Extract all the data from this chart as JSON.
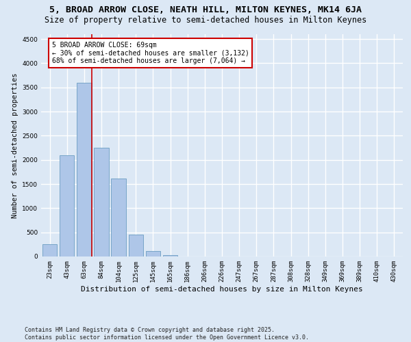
{
  "title": "5, BROAD ARROW CLOSE, NEATH HILL, MILTON KEYNES, MK14 6JA",
  "subtitle": "Size of property relative to semi-detached houses in Milton Keynes",
  "xlabel": "Distribution of semi-detached houses by size in Milton Keynes",
  "ylabel": "Number of semi-detached properties",
  "categories": [
    "23sqm",
    "43sqm",
    "63sqm",
    "84sqm",
    "104sqm",
    "125sqm",
    "145sqm",
    "165sqm",
    "186sqm",
    "206sqm",
    "226sqm",
    "247sqm",
    "267sqm",
    "287sqm",
    "308sqm",
    "328sqm",
    "349sqm",
    "369sqm",
    "389sqm",
    "410sqm",
    "430sqm"
  ],
  "values": [
    250,
    2100,
    3600,
    2250,
    1620,
    450,
    120,
    30,
    5,
    0,
    0,
    0,
    0,
    0,
    0,
    0,
    0,
    0,
    0,
    0,
    0
  ],
  "bar_color": "#aec6e8",
  "bar_edge_color": "#6b9dc2",
  "background_color": "#dce8f5",
  "grid_color": "#ffffff",
  "annotation_box_color": "#ffffff",
  "annotation_box_edge": "#cc0000",
  "annotation_line_color": "#cc0000",
  "property_label": "5 BROAD ARROW CLOSE: 69sqm",
  "pct_smaller": 30,
  "pct_larger": 68,
  "count_smaller": 3132,
  "count_larger": 7064,
  "marker_bin_index": 2,
  "ylim": [
    0,
    4600
  ],
  "yticks": [
    0,
    500,
    1000,
    1500,
    2000,
    2500,
    3000,
    3500,
    4000,
    4500
  ],
  "footnote": "Contains HM Land Registry data © Crown copyright and database right 2025.\nContains public sector information licensed under the Open Government Licence v3.0.",
  "title_fontsize": 9.5,
  "subtitle_fontsize": 8.5,
  "xlabel_fontsize": 8,
  "ylabel_fontsize": 7.5,
  "tick_fontsize": 6.5,
  "annotation_fontsize": 7,
  "footnote_fontsize": 6
}
